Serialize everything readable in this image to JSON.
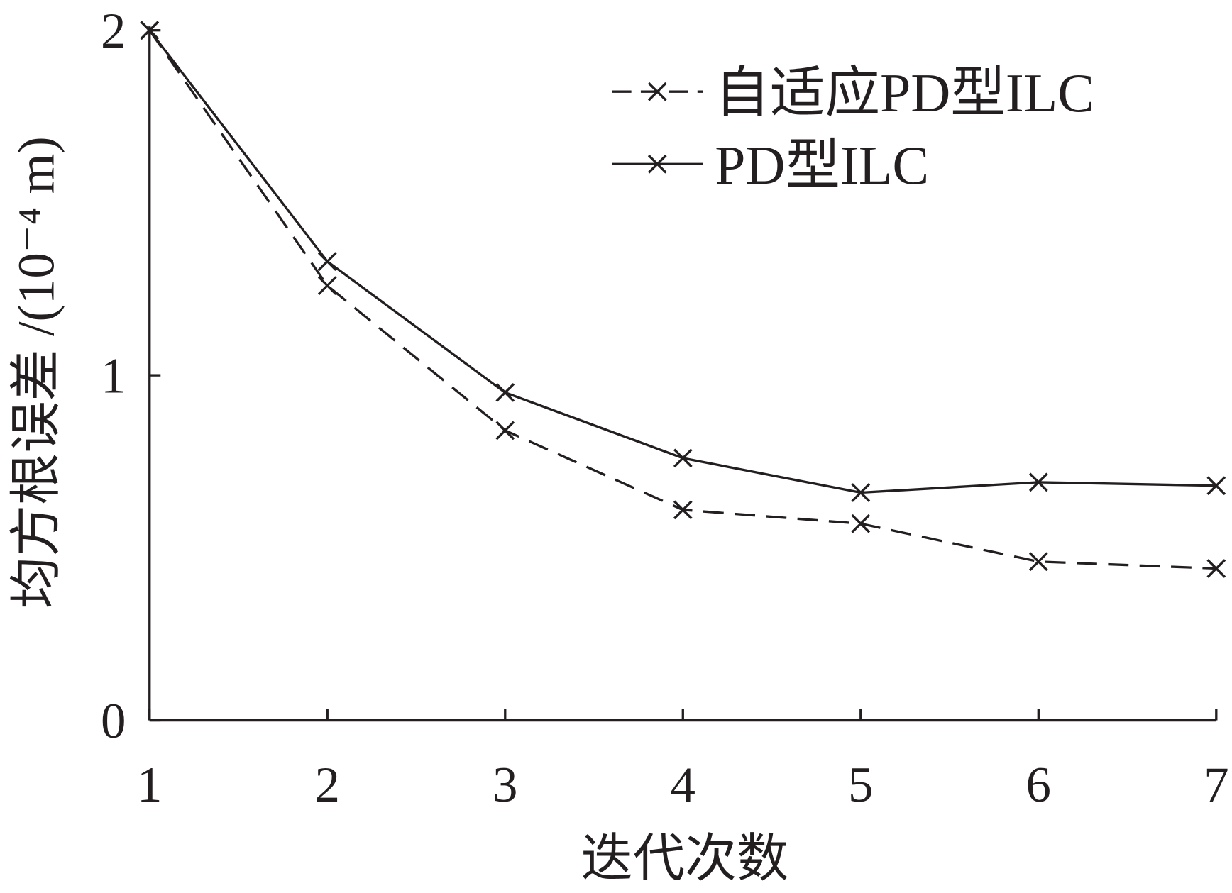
{
  "chart_data": {
    "type": "line",
    "x_label": "迭代次数",
    "y_label": "均方根误差 /(10⁻⁴ m)",
    "x": [
      1,
      2,
      3,
      4,
      5,
      6,
      7
    ],
    "xlim": [
      1,
      7
    ],
    "xticks": [
      1,
      2,
      3,
      4,
      5,
      6,
      7
    ],
    "ylim": [
      0,
      2
    ],
    "yticks": [
      0,
      1,
      2
    ],
    "legend": "upper right",
    "series": [
      {
        "name": "自适应PD型ILC",
        "color": "#231f20",
        "dashed": true,
        "values": [
          2,
          1.26,
          0.84,
          0.61,
          0.57,
          0.46,
          0.44
        ]
      },
      {
        "name": "PD型ILC",
        "color": "#231f20",
        "dashed": false,
        "values": [
          2,
          1.33,
          0.95,
          0.76,
          0.66,
          0.69,
          0.68
        ]
      }
    ]
  }
}
